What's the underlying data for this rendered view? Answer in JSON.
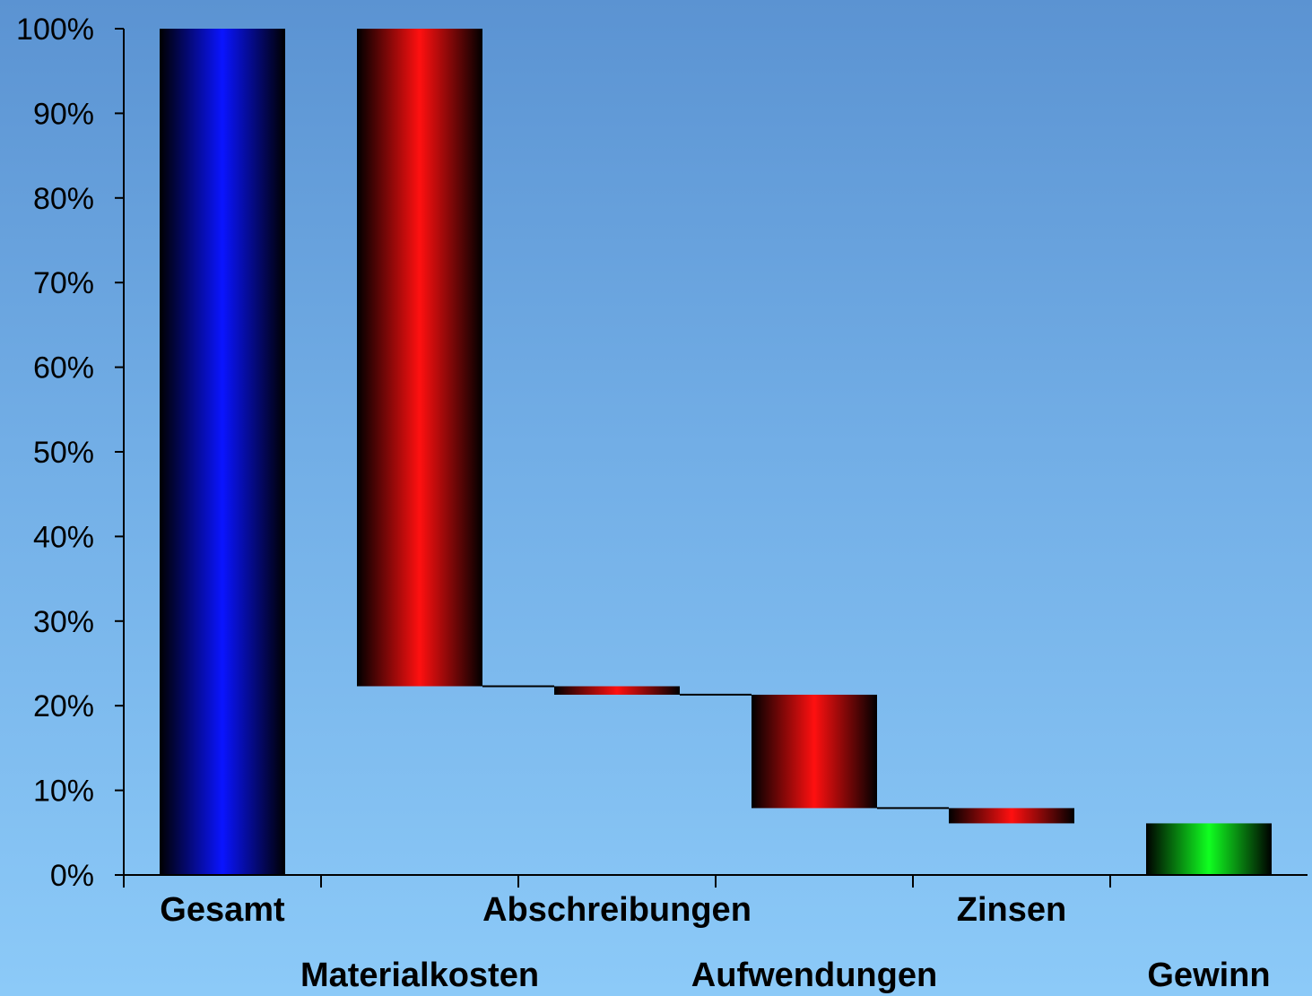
{
  "chart_data": {
    "type": "bar",
    "subtype": "waterfall",
    "title": "",
    "xlabel": "",
    "ylabel": "",
    "ylim": [
      0,
      100
    ],
    "yticks": [
      "0%",
      "10%",
      "20%",
      "30%",
      "40%",
      "50%",
      "60%",
      "70%",
      "80%",
      "90%",
      "100%"
    ],
    "grid": false,
    "legend": "none",
    "categories": [
      "Gesamt",
      "Materialkosten",
      "Abschreibungen",
      "Aufwendungen",
      "Zinsen",
      "Gewinn"
    ],
    "bars": [
      {
        "label": "Gesamt",
        "kind": "total",
        "bottom": 0,
        "top": 100,
        "color": "#0a14ff"
      },
      {
        "label": "Materialkosten",
        "kind": "decrease",
        "bottom": 22.3,
        "top": 100,
        "color": "#ff1010"
      },
      {
        "label": "Abschreibungen",
        "kind": "decrease",
        "bottom": 21.3,
        "top": 22.3,
        "color": "#ff1010"
      },
      {
        "label": "Aufwendungen",
        "kind": "decrease",
        "bottom": 7.9,
        "top": 21.3,
        "color": "#ff1010"
      },
      {
        "label": "Zinsen",
        "kind": "decrease",
        "bottom": 6.1,
        "top": 7.9,
        "color": "#ff1010"
      },
      {
        "label": "Gewinn",
        "kind": "result",
        "bottom": 0,
        "top": 6.1,
        "color": "#10ff20"
      }
    ]
  }
}
